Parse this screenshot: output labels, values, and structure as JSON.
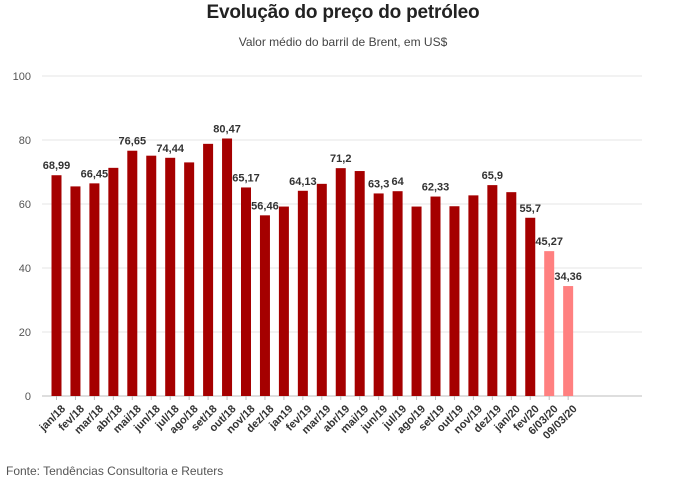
{
  "title": "Evolução do preço do petróleo",
  "subtitle": "Valor médio do barril de Brent, em US$",
  "source": "Fonte: Tendências Consultoria e Reuters",
  "colors": {
    "monthly": "#a50000",
    "daily": "#ff8080",
    "grid": "#e6e6e6"
  },
  "chart_data": {
    "type": "bar",
    "title": "Evolução do preço do petróleo",
    "subtitle": "Valor médio do barril de Brent, em US$",
    "ylim": [
      0,
      100
    ],
    "yticks": [
      0,
      20,
      40,
      60,
      80,
      100
    ],
    "grid": true,
    "categories": [
      "jan/18",
      "fev/18",
      "mar/18",
      "abr/18",
      "mai/18",
      "jun/18",
      "jul/18",
      "ago/18",
      "set/18",
      "out/18",
      "nov/18",
      "dez/18",
      "jan19",
      "fev/19",
      "mar/19",
      "abr/19",
      "mai/19",
      "jun/19",
      "jul/19",
      "ago/19",
      "set/19",
      "out/19",
      "nov/19",
      "dez/19",
      "jan/20",
      "fev/20",
      "6/03/20",
      "09/03/20"
    ],
    "values": [
      68.99,
      65.5,
      66.45,
      71.3,
      76.65,
      75.1,
      74.44,
      73.0,
      78.8,
      80.47,
      65.17,
      56.46,
      59.2,
      64.13,
      66.3,
      71.2,
      70.3,
      63.3,
      64,
      59.2,
      62.33,
      59.3,
      62.7,
      65.9,
      63.7,
      55.7,
      45.27,
      34.36
    ],
    "labels": [
      "68,99",
      "",
      "66,45",
      "",
      "76,65",
      "",
      "74,44",
      "",
      "",
      "80,47",
      "65,17",
      "56,46",
      "",
      "64,13",
      "",
      "71,2",
      "",
      "63,3",
      "64",
      "",
      "62,33",
      "",
      "",
      "65,9",
      "",
      "55,7",
      "45,27",
      "34,36"
    ],
    "highlight": [
      false,
      false,
      false,
      false,
      false,
      false,
      false,
      false,
      false,
      false,
      false,
      false,
      false,
      false,
      false,
      false,
      false,
      false,
      false,
      false,
      false,
      false,
      false,
      false,
      false,
      false,
      true,
      true
    ]
  }
}
